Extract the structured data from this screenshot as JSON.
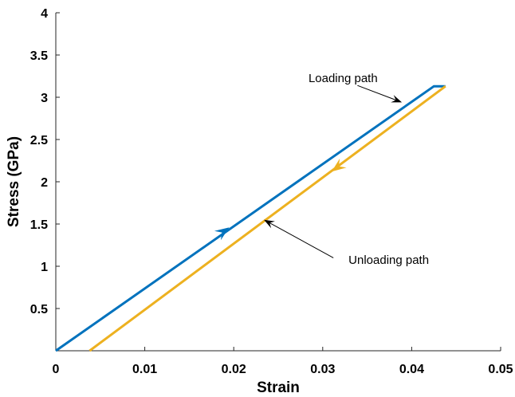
{
  "chart_data": {
    "type": "line",
    "title": "",
    "xlabel": "Strain",
    "ylabel": "Stress (GPa)",
    "xlim": [
      0,
      0.05
    ],
    "ylim": [
      0,
      4
    ],
    "xticks": [
      0,
      0.01,
      0.02,
      0.03,
      0.04,
      0.05
    ],
    "yticks": [
      0.5,
      1,
      1.5,
      2,
      2.5,
      3,
      3.5,
      4
    ],
    "xtick_labels": [
      "0",
      "0.01",
      "0.02",
      "0.03",
      "0.04",
      "0.05"
    ],
    "ytick_labels": [
      "0.5",
      "1",
      "1.5",
      "2",
      "2.5",
      "3",
      "3.5",
      "4"
    ],
    "grid": false,
    "series": [
      {
        "name": "Loading path",
        "color": "#0072BD",
        "x": [
          0,
          0.0425,
          0.0438
        ],
        "y": [
          0,
          3.13,
          3.13
        ],
        "arrow_at": {
          "x": 0.0195,
          "y": 1.46,
          "direction": "forward"
        }
      },
      {
        "name": "Unloading path",
        "color": "#EDB120",
        "x": [
          0.0438,
          0.0038
        ],
        "y": [
          3.13,
          0
        ],
        "arrow_at": {
          "x": 0.031,
          "y": 2.12,
          "direction": "forward"
        }
      }
    ],
    "annotations": [
      {
        "text": "Loading path",
        "text_at": {
          "x": 0.0284,
          "y": 3.18
        },
        "text_anchor": "start",
        "arrow_from": {
          "x": 0.0339,
          "y": 3.14
        },
        "arrow_to": {
          "x": 0.0389,
          "y": 2.94
        }
      },
      {
        "text": "Unloading path",
        "text_at": {
          "x": 0.0329,
          "y": 1.03
        },
        "text_anchor": "start",
        "arrow_from": {
          "x": 0.0312,
          "y": 1.1
        },
        "arrow_to": {
          "x": 0.0234,
          "y": 1.55
        }
      }
    ]
  }
}
